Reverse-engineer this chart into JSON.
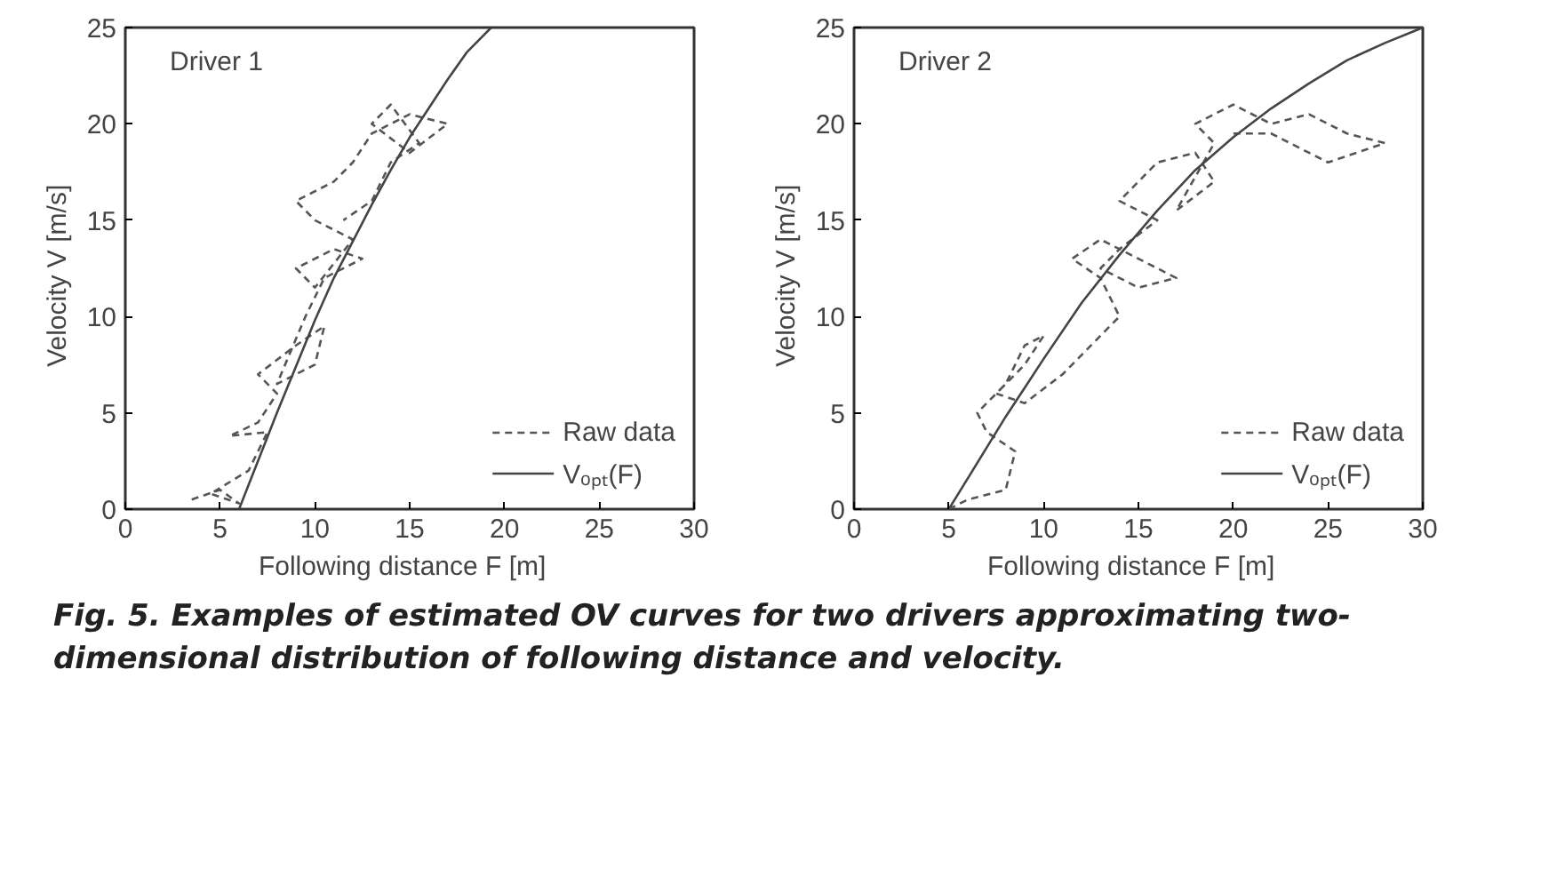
{
  "chart_data": [
    {
      "type": "line",
      "title": "Driver 1",
      "xlabel": "Following distance  F  [m]",
      "ylabel": "Velocity  V  [m/s]",
      "xlim": [
        0,
        30
      ],
      "ylim": [
        0,
        25
      ],
      "xticks": [
        0,
        5,
        10,
        15,
        20,
        25,
        30
      ],
      "yticks": [
        0,
        5,
        10,
        15,
        20,
        25
      ],
      "grid": false,
      "legend": "bottom right",
      "series": [
        {
          "name": "Raw data",
          "color": "#555555",
          "line_style": "dashed",
          "x": [
            3.5,
            5,
            6,
            4.5,
            6.5,
            7.5,
            5.5,
            7,
            8,
            7,
            9,
            10.5,
            10,
            8,
            9.5,
            10.5,
            12.5,
            11,
            9,
            10,
            12,
            10,
            9,
            11,
            12,
            13,
            15,
            17,
            15,
            13,
            14,
            15.5,
            14,
            13,
            11.5
          ],
          "values": [
            0.5,
            1,
            0.3,
            0.8,
            2,
            4,
            3.8,
            4.5,
            6,
            7,
            8.5,
            9.5,
            7.5,
            6.5,
            10,
            12,
            13,
            13.5,
            12.5,
            11.5,
            14,
            15,
            16,
            17,
            18,
            19.5,
            20.5,
            20,
            18.5,
            20,
            21,
            19,
            18,
            16,
            15
          ]
        },
        {
          "name": "Vₒₚₜ(F)",
          "color": "#444444",
          "line_style": "solid",
          "x": [
            6,
            7,
            8,
            9,
            10,
            11,
            12,
            13,
            14,
            15,
            16,
            17,
            18,
            19.3
          ],
          "values": [
            0,
            2.5,
            5,
            7.4,
            9.8,
            12,
            13.9,
            15.8,
            17.6,
            19.3,
            20.8,
            22.3,
            23.7,
            25
          ]
        }
      ]
    },
    {
      "type": "line",
      "title": "Driver 2",
      "xlabel": "Following distance  F  [m]",
      "ylabel": "Velocity  V  [m/s]",
      "xlim": [
        0,
        30
      ],
      "ylim": [
        0,
        25
      ],
      "xticks": [
        0,
        5,
        10,
        15,
        20,
        25,
        30
      ],
      "yticks": [
        0,
        5,
        10,
        15,
        20,
        25
      ],
      "grid": false,
      "legend": "bottom right",
      "annotations": [
        "Fig. 5. Examples of estimated OV curves for two drivers approximating two-dimensional distribution of following distance and velocity."
      ],
      "series": [
        {
          "name": "Raw data",
          "color": "#555555",
          "line_style": "dashed",
          "x": [
            5,
            6,
            8,
            8.5,
            7,
            6.5,
            8,
            9,
            10,
            9,
            7.5,
            9,
            11,
            12,
            14,
            13,
            11.5,
            13,
            15,
            17,
            15,
            13,
            14,
            16,
            14,
            16,
            18,
            19,
            17,
            19,
            18,
            20,
            22,
            24,
            26,
            28,
            25,
            22,
            20
          ],
          "values": [
            0,
            0.5,
            1,
            3,
            4,
            5,
            6.5,
            8.5,
            9,
            7.5,
            6,
            5.5,
            7,
            8,
            10,
            12,
            13,
            14,
            13,
            12,
            11.5,
            12.5,
            13.5,
            15,
            16,
            18,
            18.5,
            17,
            15.5,
            19,
            20,
            21,
            20,
            20.5,
            19.5,
            19,
            18,
            19.5,
            19.5
          ]
        },
        {
          "name": "Vₒₚₜ(F)",
          "color": "#444444",
          "line_style": "solid",
          "x": [
            5,
            6,
            7,
            8,
            9,
            10,
            12,
            14,
            16,
            18,
            20,
            22,
            24,
            26,
            28,
            30
          ],
          "values": [
            0,
            1.6,
            3.2,
            4.8,
            6.3,
            7.8,
            10.7,
            13.2,
            15.5,
            17.6,
            19.3,
            20.8,
            22.1,
            23.3,
            24.2,
            25
          ]
        }
      ]
    }
  ]
}
